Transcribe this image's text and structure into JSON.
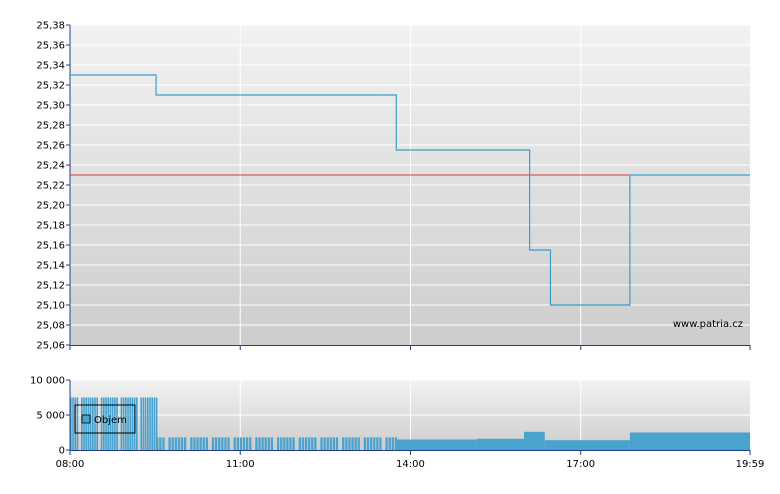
{
  "colors": {
    "price_line": "#3a9fc8",
    "reference_line": "#d23b3b",
    "volume_fill": "#4aa3cf",
    "axis": "#1f3f8f",
    "grid": "#ffffff",
    "plot_bg_top": "#f2f2f2",
    "plot_bg_bottom": "#cdcdcd"
  },
  "chart_data": [
    {
      "type": "line",
      "step": true,
      "x_unit": "time",
      "x_range": [
        "08:00",
        "19:59"
      ],
      "ylim": [
        25.06,
        25.38
      ],
      "grid": true,
      "watermark": "www.patria.cz",
      "y_ticks": [
        "25,06",
        "25,08",
        "25,10",
        "25,12",
        "25,14",
        "25,16",
        "25,18",
        "25,20",
        "25,22",
        "25,24",
        "25,26",
        "25,28",
        "25,30",
        "25,32",
        "25,34",
        "25,36",
        "25,38"
      ],
      "x_ticks": [
        "08:00",
        "11:00",
        "14:00",
        "17:00",
        "19:59"
      ],
      "reference_line": {
        "y": 25.23
      },
      "series": [
        {
          "points": [
            {
              "x": "08:00",
              "y": 25.33
            },
            {
              "x": "09:31",
              "y": 25.31
            },
            {
              "x": "13:45",
              "y": 25.255
            },
            {
              "x": "16:06",
              "y": 25.155
            },
            {
              "x": "16:28",
              "y": 25.1
            },
            {
              "x": "17:52",
              "y": 25.23
            },
            {
              "x": "19:59",
              "y": 25.23
            }
          ]
        }
      ]
    },
    {
      "type": "bar",
      "x_unit": "time",
      "x_range": [
        "08:00",
        "19:59"
      ],
      "ylim": [
        0,
        10000
      ],
      "grid": true,
      "y_ticks": [
        "0",
        "5 000",
        "10 000"
      ],
      "legend": {
        "label": "Objem",
        "position": "top-left"
      },
      "bars": [
        {
          "from": "08:00",
          "to": "09:31",
          "value": 7500,
          "pattern": "dense"
        },
        {
          "from": "09:31",
          "to": "13:45",
          "value": 1800,
          "pattern": "sparse"
        },
        {
          "from": "13:45",
          "to": "15:10",
          "value": 1500,
          "pattern": "solid"
        },
        {
          "from": "15:10",
          "to": "16:00",
          "value": 1600,
          "pattern": "solid"
        },
        {
          "from": "16:00",
          "to": "16:22",
          "value": 2600,
          "pattern": "solid"
        },
        {
          "from": "16:22",
          "to": "17:52",
          "value": 1400,
          "pattern": "solid"
        },
        {
          "from": "17:52",
          "to": "19:59",
          "value": 2500,
          "pattern": "solid"
        }
      ]
    }
  ]
}
